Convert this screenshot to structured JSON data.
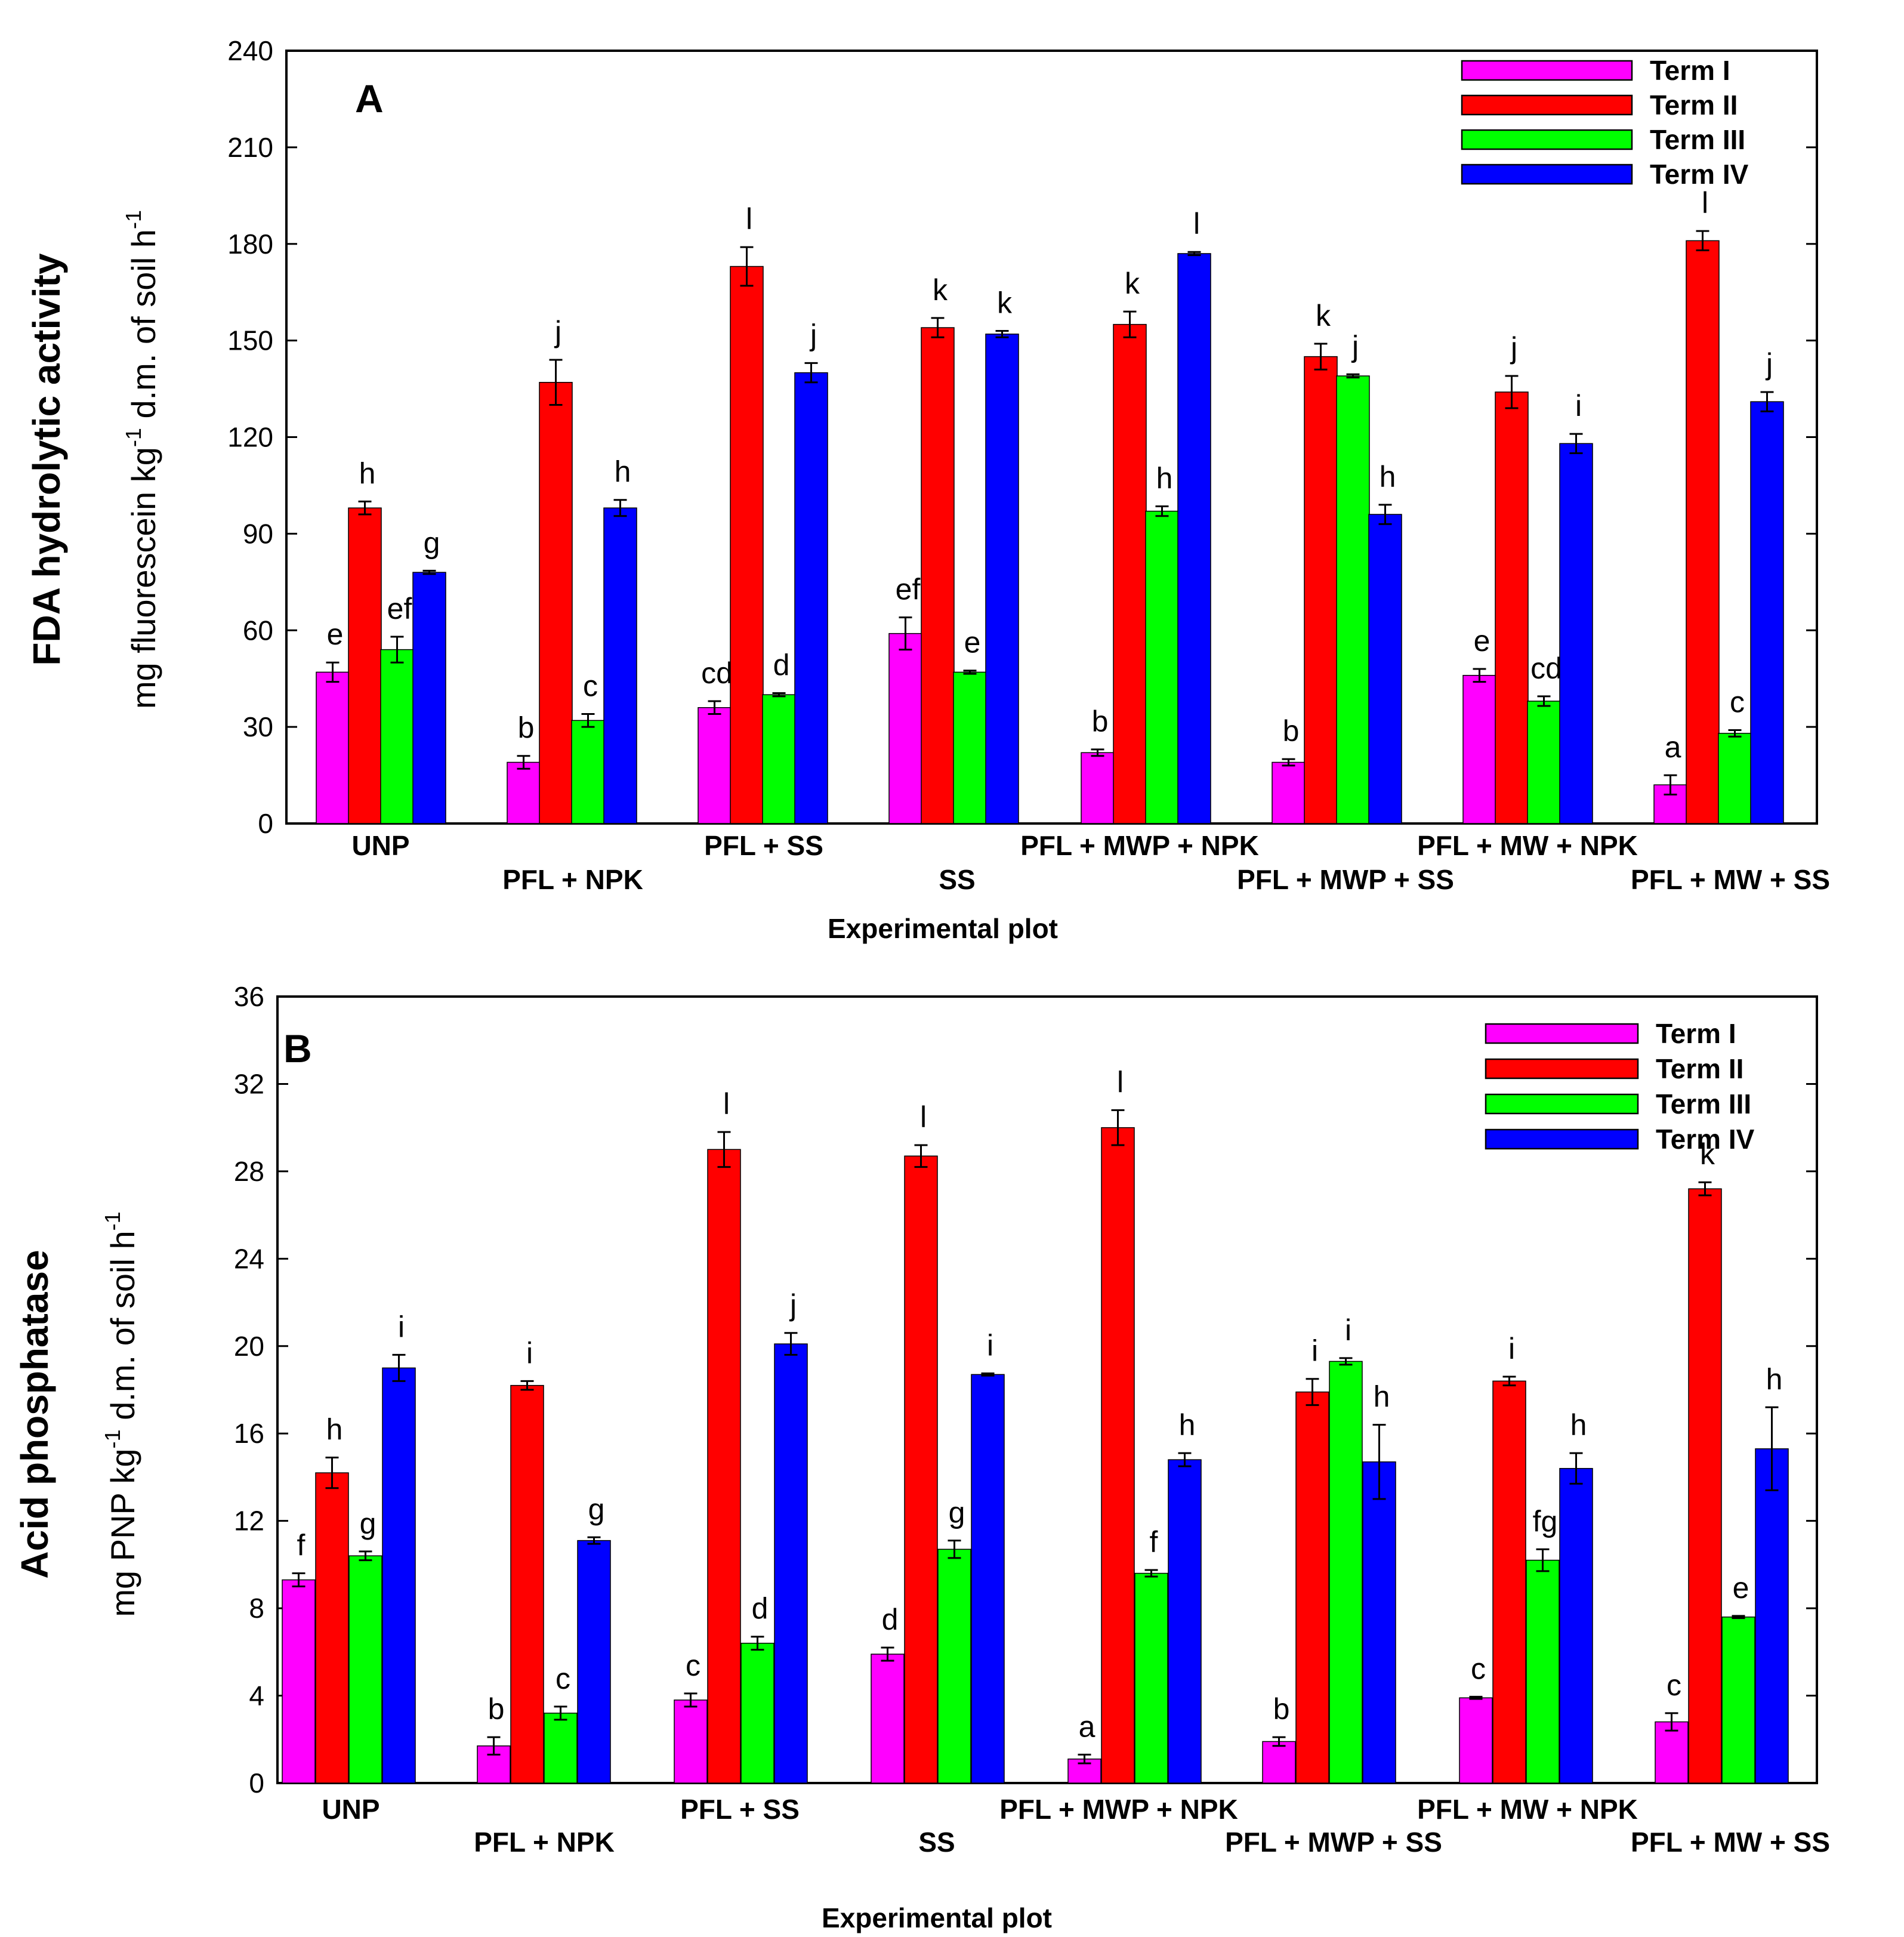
{
  "chart_data": [
    {
      "type": "bar",
      "panel": "A",
      "ylabel_main": "FDA hydrolytic activity",
      "ylabel_units_prefix": "mg fluorescein kg",
      "ylabel_units_exp1": "-1",
      "ylabel_units_mid": " d.m. of soil h",
      "ylabel_units_exp2": "-1",
      "xlabel": "Experimental plot",
      "ylim": [
        0,
        240
      ],
      "yticks": [
        0,
        30,
        60,
        90,
        120,
        150,
        180,
        210,
        240
      ],
      "categories": [
        "UNP",
        "PFL + NPK",
        "PFL + SS",
        "SS",
        "PFL + MWP + NPK",
        "PFL + MWP + SS",
        "PFL + MW + NPK",
        "PFL + MW + SS"
      ],
      "series": [
        {
          "name": "Term I",
          "color": "#ff00ff",
          "values": [
            47,
            19,
            36,
            59,
            22,
            19,
            46,
            12
          ],
          "errors": [
            3,
            2,
            2,
            5,
            1,
            1,
            2,
            3
          ],
          "letters": [
            "e",
            "b",
            "cd",
            "ef",
            "b",
            "b",
            "e",
            "a"
          ]
        },
        {
          "name": "Term II",
          "color": "#ff0000",
          "values": [
            98,
            137,
            173,
            154,
            155,
            145,
            134,
            181
          ],
          "errors": [
            2,
            7,
            6,
            3,
            4,
            4,
            5,
            3
          ],
          "letters": [
            "h",
            "j",
            "l",
            "k",
            "k",
            "k",
            "j",
            "l"
          ]
        },
        {
          "name": "Term III",
          "color": "#00ff00",
          "values": [
            54,
            32,
            40,
            47,
            97,
            139,
            38,
            28
          ],
          "errors": [
            4,
            2,
            0.5,
            0.5,
            1.5,
            0.5,
            1.5,
            1
          ],
          "letters": [
            "ef",
            "c",
            "d",
            "e",
            "h",
            "j",
            "cd",
            "c"
          ]
        },
        {
          "name": "Term IV",
          "color": "#0000ff",
          "values": [
            78,
            98,
            140,
            152,
            177,
            96,
            118,
            131
          ],
          "errors": [
            0.5,
            2.5,
            3,
            1,
            0.5,
            3,
            3,
            3
          ],
          "letters": [
            "g",
            "h",
            "j",
            "k",
            "l",
            "h",
            "i",
            "j"
          ]
        }
      ]
    },
    {
      "type": "bar",
      "panel": "B",
      "ylabel_main": "Acid phosphatase",
      "ylabel_units_prefix": "mg PNP kg",
      "ylabel_units_exp1": "-1",
      "ylabel_units_mid": " d.m. of soil h",
      "ylabel_units_exp2": "-1",
      "xlabel": "Experimental plot",
      "ylim": [
        0,
        36
      ],
      "yticks": [
        0,
        4,
        8,
        12,
        16,
        20,
        24,
        28,
        32,
        36
      ],
      "categories": [
        "UNP",
        "PFL + NPK",
        "PFL + SS",
        "SS",
        "PFL + MWP + NPK",
        "PFL + MWP + SS",
        "PFL + MW + NPK",
        "PFL + MW + SS"
      ],
      "series": [
        {
          "name": "Term I",
          "color": "#ff00ff",
          "values": [
            9.3,
            1.7,
            3.8,
            5.9,
            1.1,
            1.9,
            3.9,
            2.8
          ],
          "errors": [
            0.3,
            0.4,
            0.3,
            0.3,
            0.2,
            0.2,
            0.05,
            0.4
          ],
          "letters": [
            "f",
            "b",
            "c",
            "d",
            "a",
            "b",
            "c",
            "c"
          ]
        },
        {
          "name": "Term II",
          "color": "#ff0000",
          "values": [
            14.2,
            18.2,
            29.0,
            28.7,
            30.0,
            17.9,
            18.4,
            27.2
          ],
          "errors": [
            0.7,
            0.2,
            0.8,
            0.5,
            0.8,
            0.6,
            0.2,
            0.3
          ],
          "letters": [
            "h",
            "i",
            "l",
            "l",
            "l",
            "i",
            "i",
            "k"
          ]
        },
        {
          "name": "Term III",
          "color": "#00ff00",
          "values": [
            10.4,
            3.2,
            6.4,
            10.7,
            9.6,
            19.3,
            10.2,
            7.6
          ],
          "errors": [
            0.2,
            0.3,
            0.3,
            0.4,
            0.15,
            0.15,
            0.5,
            0.05
          ],
          "letters": [
            "g",
            "c",
            "d",
            "g",
            "f",
            "i",
            "fg",
            "e"
          ]
        },
        {
          "name": "Term IV",
          "color": "#0000ff",
          "values": [
            19.0,
            11.1,
            20.1,
            18.7,
            14.8,
            14.7,
            14.4,
            15.3
          ],
          "errors": [
            0.6,
            0.15,
            0.5,
            0.05,
            0.3,
            1.7,
            0.7,
            1.9
          ],
          "letters": [
            "i",
            "g",
            "j",
            "i",
            "h",
            "h",
            "h",
            "h"
          ]
        }
      ]
    }
  ]
}
